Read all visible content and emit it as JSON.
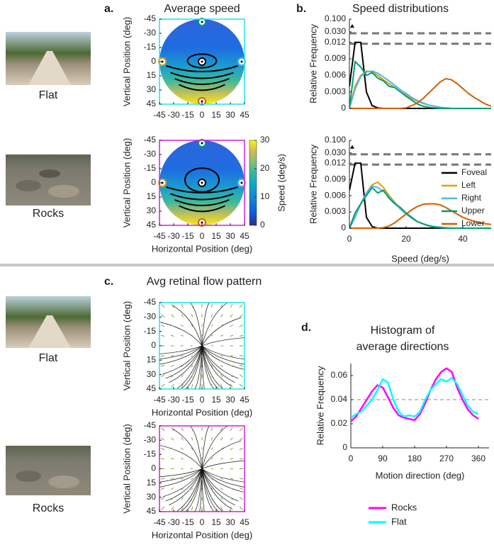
{
  "photos": [
    {
      "caption": "Flat"
    },
    {
      "caption": "Rocks"
    },
    {
      "caption": "Flat"
    },
    {
      "caption": "Rocks"
    }
  ],
  "panel_labels": [
    "a.",
    "b.",
    "c.",
    "d."
  ],
  "chart_data": [
    {
      "type": "heatmap",
      "title": "Average speed",
      "ylabel": "Vertical Position (deg)",
      "xlim": [
        -45,
        45
      ],
      "ylim": [
        -45,
        45
      ],
      "y_direction": "reverse",
      "xticks": [
        -45,
        -30,
        -15,
        0,
        15,
        30,
        45
      ],
      "yticks": [
        -45,
        -30,
        -15,
        0,
        15,
        30,
        45
      ],
      "frame_color": "#1de4f0"
    },
    {
      "type": "heatmap",
      "ylabel": "Vertical Position (deg)",
      "xlabel": "Horizontal Position (deg)",
      "xlim": [
        -45,
        45
      ],
      "ylim": [
        -45,
        45
      ],
      "y_direction": "reverse",
      "xticks": [
        -45,
        -30,
        -15,
        0,
        15,
        30,
        45
      ],
      "yticks": [
        -45,
        -30,
        -15,
        0,
        15,
        30,
        45
      ],
      "frame_color": "#d61fd6",
      "colorbar": {
        "label": "Speed (deg/s)",
        "lim": [
          0,
          30
        ],
        "ticks": [
          0,
          10,
          20,
          30
        ]
      }
    },
    {
      "type": "line",
      "title": "Speed distributions",
      "ylabel": "Relative Frequency",
      "broken_axis": true,
      "xlim": [
        0,
        50
      ],
      "ylim": [
        0,
        0.1
      ],
      "yticks": [
        0,
        0.003,
        0.006,
        0.009,
        0.012,
        {
          "value": 0.03,
          "label": "0.030"
        },
        {
          "value": 0.1,
          "label": "0.100"
        }
      ],
      "x": [
        0,
        2,
        4,
        6,
        8,
        10,
        12,
        14,
        16,
        18,
        20,
        22,
        24,
        26,
        28,
        30,
        32,
        34,
        36,
        38,
        40,
        42,
        44,
        46,
        48,
        50
      ],
      "series": [
        {
          "name": "Foveal",
          "color": "#000000",
          "values": [
            0.004,
            0.012,
            0.012,
            0.003,
            0.0005,
            0.0001,
            0,
            0,
            0,
            0,
            0,
            0,
            0,
            0,
            0,
            0,
            0,
            0,
            0,
            0,
            0,
            0,
            0,
            0,
            0,
            0
          ]
        },
        {
          "name": "Left",
          "color": "#e69f00",
          "values": [
            0,
            0.004,
            0.006,
            0.0068,
            0.0066,
            0.006,
            0.0052,
            0.0045,
            0.0038,
            0.003,
            0.0024,
            0.0018,
            0.0013,
            0.0009,
            0.0006,
            0.0004,
            0.0002,
            0.0001,
            0,
            0,
            0,
            0,
            0,
            0,
            0,
            0
          ]
        },
        {
          "name": "Right",
          "color": "#56b4e9",
          "values": [
            0,
            0.0035,
            0.0058,
            0.0066,
            0.0068,
            0.0064,
            0.0057,
            0.005,
            0.0042,
            0.0034,
            0.0027,
            0.002,
            0.0014,
            0.001,
            0.0006,
            0.0004,
            0.0002,
            0.0001,
            0,
            0,
            0,
            0,
            0,
            0,
            0,
            0
          ]
        },
        {
          "name": "Upper",
          "color": "#009e73",
          "values": [
            0,
            0.0085,
            0.0075,
            0.006,
            0.0065,
            0.0055,
            0.005,
            0.004,
            0.0038,
            0.003,
            0.0022,
            0.0015,
            0.0008,
            0.0004,
            0.0002,
            0.0001,
            0,
            0,
            0,
            0,
            0,
            0,
            0,
            0,
            0,
            0
          ]
        },
        {
          "name": "Lower",
          "color": "#d55e00",
          "values": [
            0,
            0,
            0,
            0,
            0,
            0,
            0,
            0,
            0,
            0,
            0.0001,
            0.0005,
            0.001,
            0.0018,
            0.0028,
            0.0038,
            0.0048,
            0.0054,
            0.0052,
            0.0045,
            0.0036,
            0.0027,
            0.002,
            0.0014,
            0.0008,
            0.0004
          ]
        }
      ]
    },
    {
      "type": "line",
      "ylabel": "Relative Frequency",
      "xlabel": "Speed (deg/s)",
      "broken_axis": true,
      "legend": "upper right",
      "xlim": [
        0,
        50
      ],
      "ylim": [
        0,
        0.1
      ],
      "xticks": [
        0,
        20,
        40
      ],
      "yticks": [
        0,
        0.003,
        0.006,
        0.009,
        0.012,
        {
          "value": 0.03,
          "label": "0.030"
        },
        {
          "value": 0.1,
          "label": "0.100"
        }
      ],
      "x": [
        0,
        2,
        4,
        6,
        8,
        10,
        12,
        14,
        16,
        18,
        20,
        22,
        24,
        26,
        28,
        30,
        32,
        34,
        36,
        38,
        40,
        42,
        44,
        46,
        48,
        50
      ],
      "series": [
        {
          "name": "Foveal",
          "color": "#000000",
          "values": [
            0.007,
            0.012,
            0.012,
            0.002,
            0.0003,
            0,
            0,
            0,
            0,
            0,
            0,
            0,
            0,
            0,
            0,
            0,
            0,
            0,
            0,
            0,
            0,
            0,
            0,
            0,
            0,
            0
          ]
        },
        {
          "name": "Left",
          "color": "#e69f00",
          "values": [
            0,
            0.002,
            0.0045,
            0.0065,
            0.008,
            0.0085,
            0.0075,
            0.006,
            0.0048,
            0.0036,
            0.0026,
            0.0018,
            0.0012,
            0.0008,
            0.0005,
            0.0003,
            0.0002,
            0.0001,
            0,
            0,
            0,
            0,
            0,
            0,
            0,
            0
          ]
        },
        {
          "name": "Right",
          "color": "#56b4e9",
          "values": [
            0,
            0.002,
            0.0045,
            0.0065,
            0.0078,
            0.0075,
            0.0068,
            0.0058,
            0.0046,
            0.0035,
            0.0026,
            0.0018,
            0.0012,
            0.0008,
            0.0005,
            0.0003,
            0.0002,
            0.0001,
            0,
            0,
            0,
            0,
            0,
            0,
            0,
            0
          ]
        },
        {
          "name": "Upper",
          "color": "#009e73",
          "values": [
            0,
            0.0028,
            0.0045,
            0.006,
            0.0075,
            0.0065,
            0.007,
            0.0055,
            0.0045,
            0.0038,
            0.0028,
            0.002,
            0.0012,
            0.0008,
            0.0004,
            0.0002,
            0.0001,
            0,
            0,
            0,
            0,
            0,
            0,
            0,
            0,
            0
          ]
        },
        {
          "name": "Lower",
          "color": "#d55e00",
          "values": [
            0,
            0,
            0,
            0,
            0,
            0,
            0.0001,
            0.0004,
            0.001,
            0.0018,
            0.0026,
            0.0034,
            0.004,
            0.0044,
            0.0045,
            0.0045,
            0.0043,
            0.0038,
            0.0032,
            0.0026,
            0.002,
            0.0016,
            0.0013,
            0.001,
            0.0008,
            0.0007
          ]
        }
      ]
    },
    {
      "type": "quiver",
      "title": "Avg retinal flow pattern",
      "ylabel": "Vertical Position (deg)",
      "xlabel": "Horizontal Position (deg)",
      "xlim": [
        -45,
        45
      ],
      "ylim": [
        -45,
        45
      ],
      "y_direction": "reverse",
      "xticks": [
        -45,
        -30,
        -15,
        0,
        15,
        30,
        45
      ],
      "yticks": [
        -45,
        -30,
        -15,
        0,
        15,
        30,
        45
      ],
      "frame_color": "#1de4f0"
    },
    {
      "type": "quiver",
      "ylabel": "Vertical Position (deg)",
      "xlabel": "Horizontal Position (deg)",
      "xlim": [
        -45,
        45
      ],
      "ylim": [
        -45,
        45
      ],
      "y_direction": "reverse",
      "xticks": [
        -45,
        -30,
        -15,
        0,
        15,
        30,
        45
      ],
      "yticks": [
        -45,
        -30,
        -15,
        0,
        15,
        30,
        45
      ],
      "frame_color": "#d61fd6"
    },
    {
      "type": "line",
      "title": [
        "Histogram of",
        "average directions"
      ],
      "ylabel": "Relative Frequency",
      "xlabel": "Motion direction (deg)",
      "legend": "below",
      "xlim": [
        0,
        390
      ],
      "ylim": [
        0,
        0.07
      ],
      "xticks": [
        0,
        90,
        180,
        270,
        360
      ],
      "yticks": [
        0,
        0.02,
        0.04,
        0.06
      ],
      "reference_line": 0.04,
      "x": [
        0,
        15,
        30,
        45,
        60,
        75,
        90,
        105,
        120,
        135,
        150,
        165,
        180,
        195,
        210,
        225,
        240,
        255,
        270,
        285,
        300,
        315,
        330,
        345,
        360
      ],
      "series": [
        {
          "name": "Rocks",
          "color": "#ff00ff",
          "values": [
            0.022,
            0.026,
            0.033,
            0.04,
            0.047,
            0.052,
            0.05,
            0.042,
            0.033,
            0.027,
            0.025,
            0.024,
            0.023,
            0.028,
            0.037,
            0.048,
            0.057,
            0.063,
            0.066,
            0.063,
            0.05,
            0.04,
            0.032,
            0.027,
            0.024
          ]
        },
        {
          "name": "Flat",
          "color": "#00ffff",
          "values": [
            0.025,
            0.028,
            0.03,
            0.035,
            0.04,
            0.048,
            0.057,
            0.054,
            0.04,
            0.03,
            0.026,
            0.027,
            0.026,
            0.03,
            0.04,
            0.048,
            0.053,
            0.057,
            0.055,
            0.058,
            0.053,
            0.044,
            0.035,
            0.03,
            0.028
          ]
        }
      ]
    }
  ]
}
